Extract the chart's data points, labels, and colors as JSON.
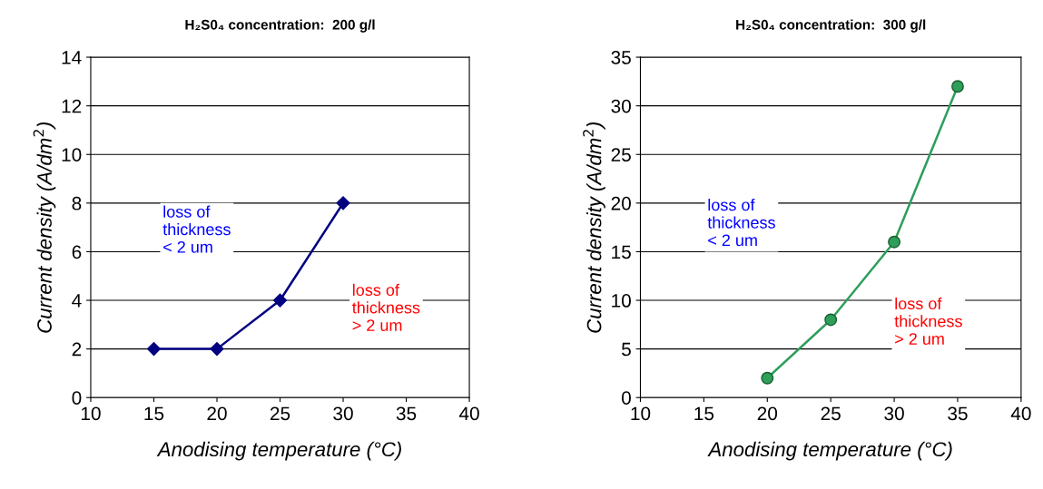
{
  "chart_data": [
    {
      "type": "line",
      "title": "H₂S0₄ concentration:  200 g/l",
      "xlabel": "Anodising temperature (°C)",
      "ylabel": "Current density (A/dm$^{2}$)",
      "marker": "diamond",
      "grid": "y",
      "legend": false,
      "series": [
        {
          "color": "#000080",
          "x": [
            15,
            20,
            25,
            30
          ],
          "values": [
            2,
            2,
            4,
            8
          ]
        }
      ],
      "xlim": [
        10,
        40
      ],
      "xticks": [
        10,
        15,
        20,
        25,
        30,
        35,
        40
      ],
      "ylim": [
        0,
        14
      ],
      "yticks": [
        0,
        2,
        4,
        6,
        8,
        10,
        12,
        14
      ],
      "annotations": [
        "loss of\nthickness\n< 2 um",
        "loss of\nthickness\n> 2 um"
      ]
    },
    {
      "type": "line",
      "title": "H₂S0₄ concentration:  300 g/l",
      "xlabel": "Anodising temperature (°C)",
      "ylabel": "Current density (A/dm$^{2}$)",
      "marker": "circle",
      "grid": "y",
      "legend": false,
      "series": [
        {
          "color": "#2e9e5b",
          "x": [
            20,
            25,
            30,
            35
          ],
          "values": [
            2,
            8,
            16,
            32
          ]
        }
      ],
      "xlim": [
        10,
        40
      ],
      "xticks": [
        10,
        15,
        20,
        25,
        30,
        35,
        40
      ],
      "ylim": [
        0,
        35
      ],
      "yticks": [
        0,
        5,
        10,
        15,
        20,
        25,
        30,
        35
      ],
      "annotations": [
        "loss of\nthickness\n< 2 um",
        "loss of\nthickness\n> 2 um"
      ]
    }
  ]
}
